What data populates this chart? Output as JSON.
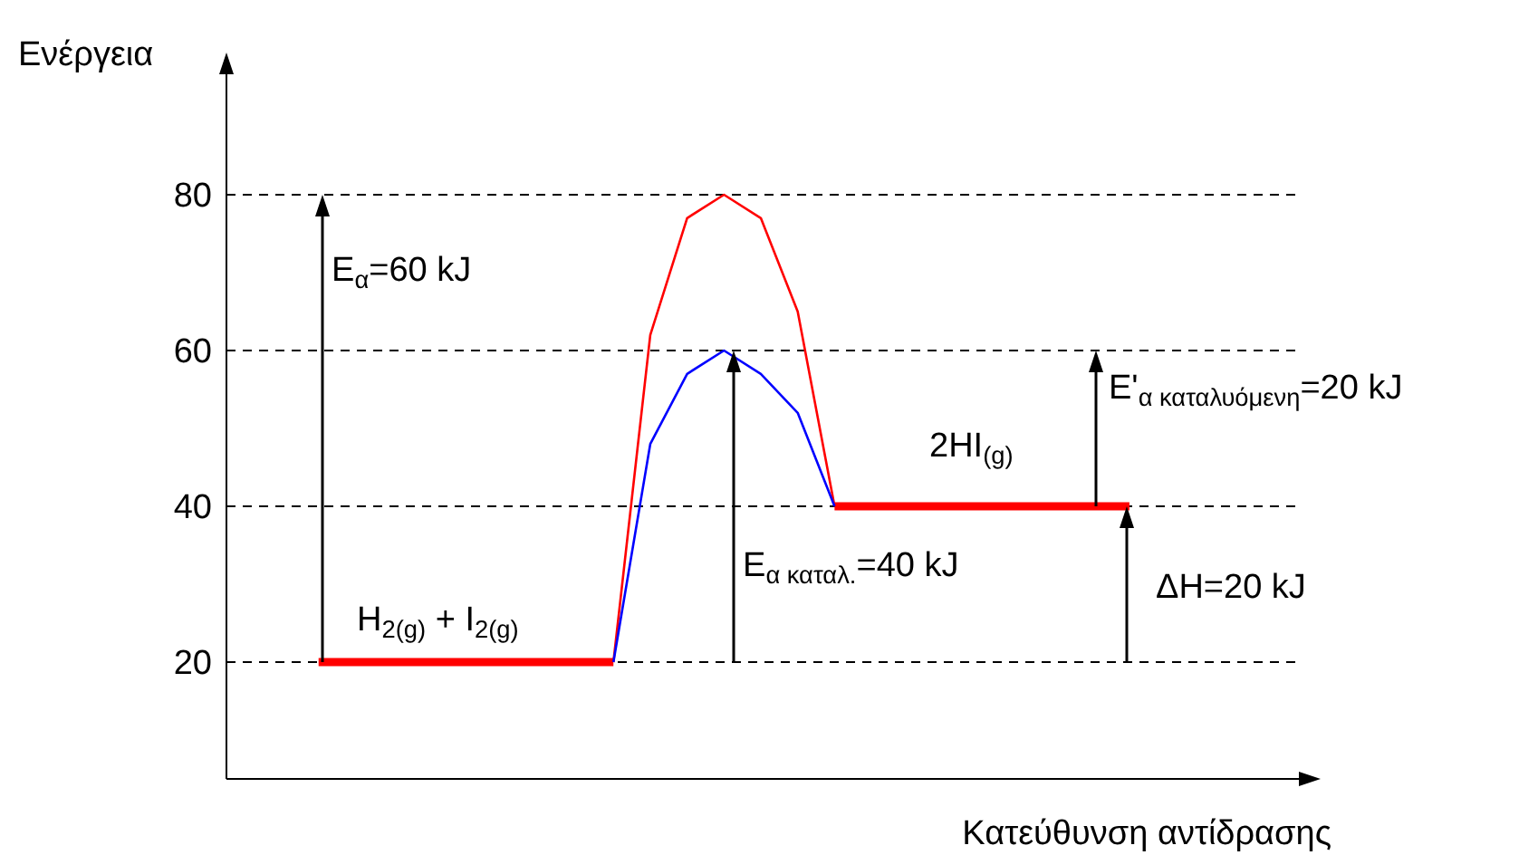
{
  "chart_data": {
    "type": "line",
    "ylabel": "Ενέργεια",
    "xlabel": "Κατεύθυνση αντίδρασης",
    "categories": [
      null,
      null,
      null,
      null,
      null,
      null,
      null,
      null,
      null,
      null,
      null,
      null,
      null,
      null,
      null,
      null,
      null,
      null,
      null,
      null,
      null,
      null,
      null,
      null,
      null,
      null,
      null,
      null,
      null
    ],
    "ylim": [
      5,
      95
    ],
    "yticks": [
      20,
      40,
      60,
      80
    ],
    "tick_labels": "y",
    "grid": false,
    "series": [
      {
        "color": "#ff0000",
        "values": [
          null,
          null,
          20,
          20,
          20,
          20,
          20,
          20,
          20,
          20,
          20,
          null,
          null,
          null,
          null,
          null,
          null,
          null,
          null,
          null,
          null,
          null,
          null,
          null,
          null,
          null,
          null,
          null,
          null
        ]
      },
      {
        "color": "#ff0000",
        "values": [
          null,
          null,
          null,
          null,
          null,
          null,
          null,
          null,
          null,
          null,
          null,
          null,
          null,
          null,
          null,
          null,
          40,
          40,
          40,
          40,
          40,
          40,
          40,
          40,
          40,
          null,
          null,
          null,
          null
        ]
      },
      {
        "color": "#ff0000",
        "values": [
          null,
          null,
          null,
          null,
          null,
          null,
          null,
          null,
          null,
          null,
          20,
          62,
          77,
          80,
          77,
          65,
          40,
          null,
          null,
          null,
          null,
          null,
          null,
          null,
          null,
          null,
          null,
          null,
          null
        ]
      },
      {
        "color": "#0000ff",
        "values": [
          null,
          null,
          null,
          null,
          null,
          null,
          null,
          null,
          null,
          null,
          20,
          48,
          57,
          60,
          57,
          52,
          40,
          null,
          null,
          null,
          null,
          null,
          null,
          null,
          null,
          null,
          null,
          null,
          null
        ]
      }
    ],
    "ref_lines": [
      {
        "axis": "y",
        "value": 80,
        "color": "#000000",
        "line_style": "dashed"
      },
      {
        "axis": "y",
        "value": 60,
        "color": "#000000",
        "line_style": "dashed"
      },
      {
        "axis": "y",
        "value": 40,
        "color": "#000000",
        "line_style": "dashed"
      },
      {
        "axis": "y",
        "value": 20,
        "color": "#000000",
        "line_style": "dashed"
      }
    ],
    "annotations": [
      "E$_{α}$=60 kJ",
      "E$_{α καταλ.}$=40 kJ",
      "E'$_{α καταλυόμενη}$=20 kJ",
      "ΔΗ=20 kJ",
      "H$_{2(g)}$ + I$_{2(g)}$",
      "2HI$_{(g)}$"
    ]
  }
}
